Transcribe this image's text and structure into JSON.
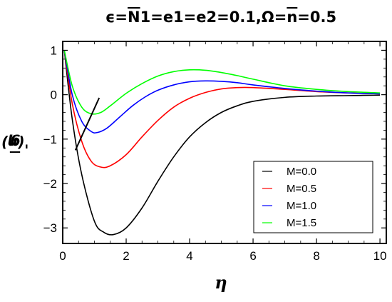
{
  "chart_data": {
    "type": "line",
    "title_parts": {
      "a": "ϵ=",
      "b": "N",
      "c": "1=e1=e2=0.1,Ω=",
      "d": "n",
      "e": "=0.5"
    },
    "xlabel": "η",
    "ylabel_parts": {
      "a": "g",
      "b": "'(η)"
    },
    "xlim": [
      0,
      10.2
    ],
    "ylim": [
      -3.35,
      1.2
    ],
    "xticks": [
      0,
      2,
      4,
      6,
      8,
      10
    ],
    "xtick_labels": [
      "0",
      "2",
      "4",
      "6",
      "8",
      "10"
    ],
    "yticks": [
      1,
      0,
      -1,
      -2,
      -3
    ],
    "ytick_labels": [
      "1",
      "0",
      "−1",
      "−2",
      "−3"
    ],
    "grid": false,
    "legend_position": "bottom-right",
    "series": [
      {
        "name": "M=0.0",
        "color": "#000000",
        "x": [
          0.05,
          0.3,
          0.6,
          1.0,
          1.3,
          1.6,
          2.0,
          2.5,
          3.0,
          3.5,
          4.0,
          4.5,
          5.0,
          5.5,
          6.0,
          7.0,
          8.0,
          9.0,
          10.0
        ],
        "y": [
          1.0,
          -0.55,
          -1.8,
          -2.85,
          -3.1,
          -3.15,
          -3.0,
          -2.55,
          -1.95,
          -1.4,
          -0.95,
          -0.63,
          -0.4,
          -0.25,
          -0.15,
          -0.06,
          -0.03,
          -0.02,
          -0.01
        ]
      },
      {
        "name": "M=0.5",
        "color": "#ff0000",
        "x": [
          0.05,
          0.3,
          0.6,
          0.9,
          1.2,
          1.5,
          2.0,
          2.5,
          3.0,
          3.5,
          4.0,
          4.5,
          5.0,
          5.5,
          6.0,
          7.0,
          8.0,
          9.0,
          10.0
        ],
        "y": [
          1.0,
          -0.2,
          -1.05,
          -1.5,
          -1.63,
          -1.6,
          -1.35,
          -0.95,
          -0.58,
          -0.28,
          -0.08,
          0.05,
          0.13,
          0.16,
          0.16,
          0.12,
          0.07,
          0.04,
          0.02
        ]
      },
      {
        "name": "M=1.0",
        "color": "#0000ff",
        "x": [
          0.05,
          0.3,
          0.6,
          0.9,
          1.1,
          1.4,
          1.8,
          2.2,
          2.6,
          3.0,
          3.5,
          4.0,
          4.5,
          5.0,
          5.5,
          6.0,
          7.0,
          8.0,
          9.0,
          10.0
        ],
        "y": [
          1.0,
          0.0,
          -0.6,
          -0.83,
          -0.85,
          -0.75,
          -0.5,
          -0.25,
          -0.05,
          0.1,
          0.22,
          0.29,
          0.31,
          0.3,
          0.27,
          0.22,
          0.14,
          0.08,
          0.04,
          0.02
        ]
      },
      {
        "name": "M=1.5",
        "color": "#00ff00",
        "x": [
          0.05,
          0.3,
          0.6,
          0.9,
          1.2,
          1.5,
          2.0,
          2.5,
          3.0,
          3.5,
          4.0,
          4.5,
          5.0,
          5.5,
          6.0,
          7.0,
          8.0,
          9.0,
          10.0
        ],
        "y": [
          1.0,
          0.2,
          -0.28,
          -0.43,
          -0.4,
          -0.25,
          0.03,
          0.25,
          0.42,
          0.52,
          0.56,
          0.55,
          0.5,
          0.43,
          0.35,
          0.2,
          0.12,
          0.07,
          0.04
        ]
      }
    ],
    "trend_arrow": {
      "from": [
        0.4,
        -1.25
      ],
      "to": [
        1.15,
        -0.07
      ]
    }
  }
}
